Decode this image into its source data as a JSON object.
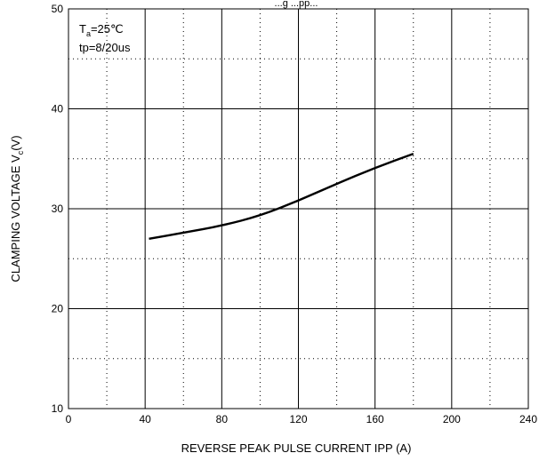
{
  "chart_data": {
    "type": "line",
    "title": "",
    "title_partial": "...g ...pp...",
    "xlabel": "REVERSE PEAK PULSE CURRENT   IPP  (A)",
    "ylabel": {
      "main": "CLAMPING VOLTAGE  V",
      "subscript": "c",
      "unit": "(V)"
    },
    "xlim": [
      0,
      240
    ],
    "ylim": [
      10,
      50
    ],
    "x_ticks": [
      "0",
      "40",
      "80",
      "120",
      "160",
      "200",
      "240"
    ],
    "y_ticks": [
      "10",
      "20",
      "30",
      "40",
      "50"
    ],
    "grid": {
      "major": "solid",
      "minor": "dotted"
    },
    "annotations": {
      "temp": {
        "prefix": "T",
        "subscript": "a",
        "value": "=25℃"
      },
      "pulse": "tp=8/20us"
    },
    "series": [
      {
        "x": [
          42,
          60,
          80,
          100,
          120,
          140,
          160,
          180
        ],
        "y": [
          27.0,
          27.6,
          28.3,
          29.3,
          30.8,
          32.5,
          34.1,
          35.5
        ]
      }
    ],
    "colors": {
      "line": "#000000",
      "grid": "#000000",
      "background": "#ffffff"
    }
  }
}
